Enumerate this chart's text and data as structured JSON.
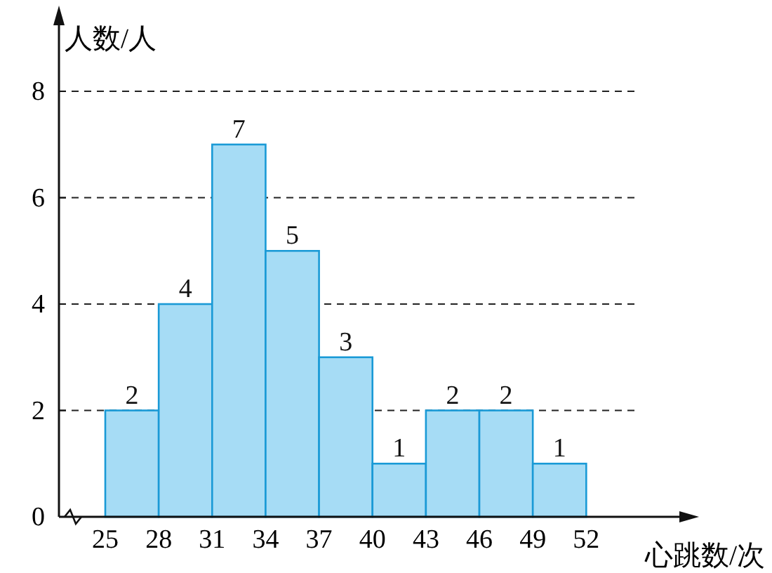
{
  "chart_data": {
    "type": "histogram",
    "xlabel": "心跳数/次",
    "ylabel": "人数/人",
    "bins": [
      25,
      28,
      31,
      34,
      37,
      40,
      43,
      46,
      49,
      52
    ],
    "values": [
      2,
      4,
      7,
      5,
      3,
      1,
      2,
      2,
      1
    ],
    "color": "#a6dcf5",
    "xlim": [
      22.4,
      57.7
    ],
    "ylim": [
      0,
      9.4
    ],
    "xticks": [
      25,
      28,
      31,
      34,
      37,
      40,
      43,
      46,
      49,
      52
    ],
    "yticks": [
      0,
      2,
      4,
      6,
      8
    ],
    "grid": "y",
    "data_labels": true
  }
}
